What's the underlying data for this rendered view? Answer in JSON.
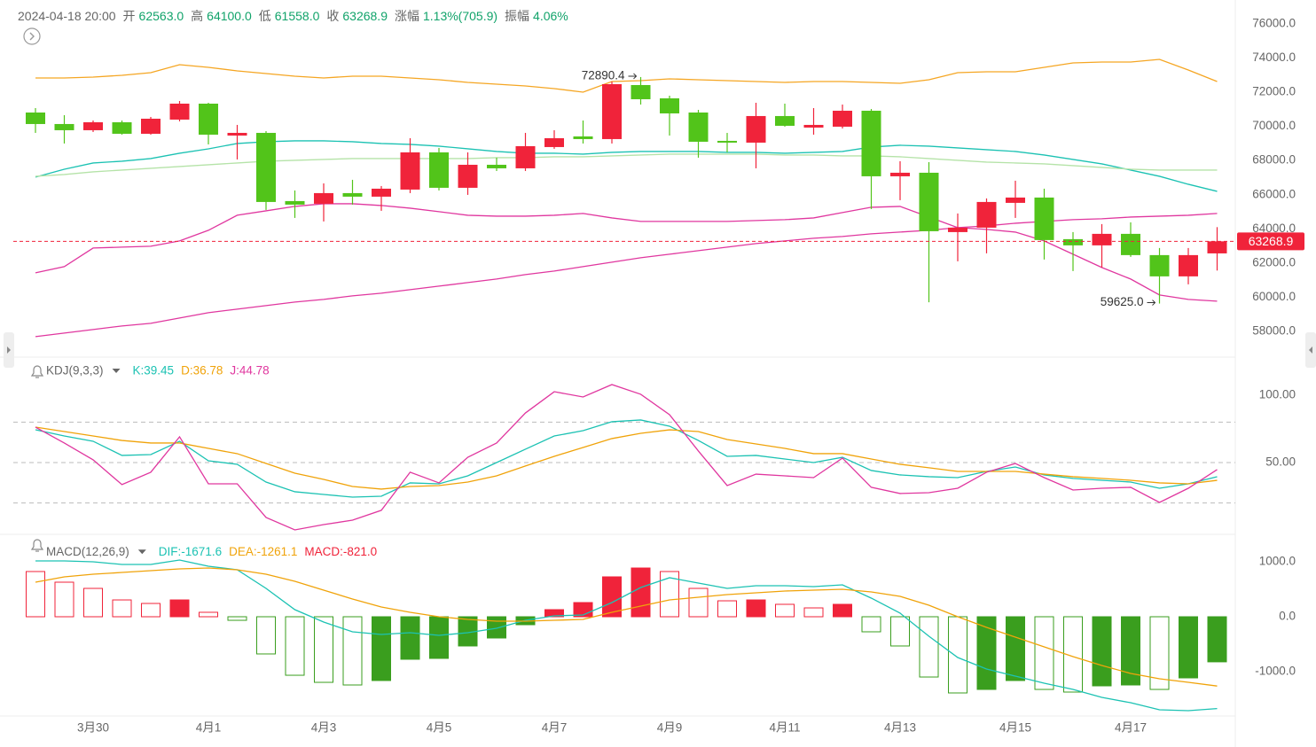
{
  "header": {
    "datetime": "2024-04-18 20:00",
    "items": [
      {
        "label": "开",
        "value": "62563.0"
      },
      {
        "label": "高",
        "value": "64100.0"
      },
      {
        "label": "低",
        "value": "61558.0"
      },
      {
        "label": "收",
        "value": "63268.9"
      },
      {
        "label": "涨幅",
        "value": "1.13%(705.9)"
      },
      {
        "label": "振幅",
        "value": "4.06%"
      }
    ]
  },
  "chart_data": [
    {
      "type": "candlestick",
      "up_color": "#f0233a",
      "down_color": "#52c41a",
      "open": [
        70813,
        70139,
        69776,
        70243,
        69568,
        70398,
        71332,
        69464,
        69620,
        65626,
        65470,
        66093,
        65885,
        66300,
        68479,
        66404,
        67752,
        67545,
        68790,
        69413,
        69257,
        72421,
        71643,
        70813,
        69153,
        69049,
        70606,
        69931,
        69983,
        70917,
        67078,
        67286,
        63810,
        64070,
        65522,
        65833,
        63396,
        63033,
        63707,
        62462,
        61217,
        62563
      ],
      "high": [
        71072,
        70657,
        70346,
        70346,
        70554,
        71487,
        71384,
        70087,
        69724,
        66248,
        66663,
        66871,
        66508,
        69309,
        68738,
        68479,
        68168,
        69620,
        69776,
        70346,
        72628,
        72890.4,
        71798,
        70968,
        69620,
        71384,
        71332,
        71072,
        71280,
        71020,
        67960,
        67908,
        64900,
        65781,
        66819,
        66352,
        63810,
        64278,
        64381,
        62877,
        62877,
        64100
      ],
      "low": [
        69620,
        68997,
        69672,
        69516,
        69516,
        70294,
        68945,
        68064,
        65107,
        64640,
        64433,
        65419,
        65055,
        66093,
        66248,
        65989,
        67389,
        67389,
        68686,
        68997,
        68997,
        71280,
        69464,
        68168,
        68479,
        67545,
        69983,
        69516,
        69879,
        65159,
        65678,
        59700,
        62099,
        62566,
        64640,
        62203,
        61528,
        61736,
        62358,
        59625,
        60750,
        61558
      ],
      "close": [
        70139,
        69776,
        70243,
        69568,
        70450,
        71332,
        69516,
        69620,
        65574,
        65419,
        66093,
        65885,
        66352,
        68479,
        66404,
        67752,
        67545,
        68842,
        69309,
        69257,
        72473,
        71591,
        70761,
        69101,
        69049,
        70606,
        70035,
        70087,
        70917,
        67078,
        67286,
        63862,
        64070,
        65574,
        65833,
        63344,
        63033,
        63707,
        62462,
        61217,
        62462,
        63268.9
      ],
      "lines": [
        {
          "color": "#f5a623",
          "values": [
            72836,
            72836,
            72888,
            72992,
            73147,
            73614,
            73458,
            73251,
            73095,
            72940,
            72836,
            72940,
            72940,
            72836,
            72732,
            72577,
            72473,
            72370,
            72214,
            72006,
            72628,
            72680,
            72784,
            72732,
            72680,
            72628,
            72577,
            72628,
            72628,
            72577,
            72525,
            72732,
            73147,
            73199,
            73199,
            73458,
            73718,
            73770,
            73770,
            73925,
            73303,
            72628
          ]
        },
        {
          "color": "#1cc2b3",
          "values": [
            67027,
            67493,
            67857,
            67960,
            68116,
            68427,
            68686,
            68998,
            69101,
            69153,
            69153,
            69101,
            68998,
            68946,
            68842,
            68686,
            68531,
            68427,
            68427,
            68375,
            68479,
            68531,
            68531,
            68531,
            68479,
            68479,
            68427,
            68479,
            68531,
            68790,
            68894,
            68842,
            68738,
            68634,
            68531,
            68323,
            68064,
            67805,
            67442,
            67078,
            66611,
            66196
          ]
        },
        {
          "color": "#b5e3a8",
          "values": [
            67078,
            67182,
            67337,
            67442,
            67545,
            67649,
            67752,
            67857,
            67960,
            68012,
            68064,
            68116,
            68116,
            68116,
            68116,
            68116,
            68168,
            68168,
            68220,
            68220,
            68272,
            68323,
            68375,
            68375,
            68375,
            68375,
            68323,
            68323,
            68272,
            68272,
            68220,
            68116,
            68012,
            67908,
            67857,
            67805,
            67701,
            67597,
            67494,
            67442,
            67442,
            67442
          ]
        },
        {
          "color": "#e0379f",
          "values": [
            61425,
            61788,
            62877,
            62929,
            62981,
            63292,
            63914,
            64796,
            65055,
            65315,
            65470,
            65470,
            65367,
            65211,
            65004,
            64796,
            64744,
            64744,
            64796,
            64900,
            64640,
            64433,
            64433,
            64433,
            64433,
            64485,
            64537,
            64640,
            64952,
            65263,
            65315,
            64692,
            64070,
            63966,
            63810,
            63292,
            62514,
            61736,
            61062,
            60129,
            59870,
            59766
          ]
        },
        {
          "color": "#e0379f",
          "values": [
            57690,
            57897,
            58105,
            58312,
            58468,
            58779,
            59090,
            59298,
            59505,
            59713,
            59868,
            60076,
            60232,
            60439,
            60646,
            60854,
            61061,
            61321,
            61528,
            61788,
            62047,
            62306,
            62514,
            62721,
            62929,
            63136,
            63292,
            63447,
            63551,
            63707,
            63811,
            63914,
            64070,
            64174,
            64329,
            64433,
            64537,
            64589,
            64692,
            64744,
            64796,
            64900
          ]
        }
      ],
      "ylim": [
        56800,
        76800
      ],
      "yticks": [
        {
          "value": 58000,
          "label": "58000.0"
        },
        {
          "value": 60000,
          "label": "60000.0"
        },
        {
          "value": 62000,
          "label": "62000.0"
        },
        {
          "value": 64000,
          "label": "64000.0"
        },
        {
          "value": 66000,
          "label": "66000.0"
        },
        {
          "value": 68000,
          "label": "68000.0"
        },
        {
          "value": 70000,
          "label": "70000.0"
        },
        {
          "value": 72000,
          "label": "72000.0"
        },
        {
          "value": 74000,
          "label": "74000.0"
        },
        {
          "value": 76000,
          "label": "76000.0"
        }
      ],
      "last_price": 63268.9,
      "last_price_color": "#f0233a",
      "high_marker": 72890.4,
      "low_marker": {
        "value": 59625,
        "label": "59625.0"
      }
    },
    {
      "type": "line",
      "title": "KDJ(9,3,3)",
      "series": [
        {
          "name": "K:39.45",
          "color": "#1cc2b3",
          "values": [
            74.3,
            69.7,
            65.8,
            55.3,
            55.9,
            65.8,
            51.3,
            48.7,
            35.5,
            28.3,
            26.3,
            24.3,
            25.0,
            34.9,
            34.2,
            40.1,
            50.0,
            59.9,
            69.7,
            73.7,
            80.3,
            81.6,
            77.0,
            66.4,
            54.6,
            55.3,
            52.6,
            50.0,
            53.9,
            44.1,
            40.8,
            39.5,
            38.8,
            43.4,
            46.7,
            40.8,
            38.2,
            36.8,
            35.5,
            30.9,
            34.2,
            39.45
          ]
        },
        {
          "name": "D:36.78",
          "color": "#f0a30a",
          "values": [
            76.3,
            73.0,
            69.7,
            66.4,
            64.5,
            64.5,
            60.5,
            56.6,
            49.3,
            42.1,
            37.5,
            32.2,
            30.3,
            32.2,
            32.9,
            35.5,
            40.1,
            47.4,
            54.6,
            61.2,
            67.8,
            71.7,
            74.3,
            73.0,
            67.1,
            63.8,
            60.5,
            56.6,
            56.6,
            52.6,
            48.7,
            46.1,
            43.4,
            43.4,
            43.4,
            41.4,
            39.5,
            38.2,
            36.8,
            34.9,
            34.2,
            36.78
          ]
        },
        {
          "name": "J:44.78",
          "color": "#e0379f",
          "values": [
            76.3,
            64.5,
            52.0,
            33.6,
            42.8,
            69.1,
            34.2,
            34.2,
            9.2,
            0.0,
            3.9,
            7.2,
            14.5,
            42.8,
            34.9,
            53.9,
            64.5,
            86.8,
            102.6,
            98.7,
            107.9,
            100.7,
            85.5,
            58.6,
            32.9,
            41.4,
            40.1,
            38.8,
            53.3,
            31.6,
            27.0,
            27.6,
            30.9,
            42.8,
            49.3,
            38.8,
            29.6,
            30.9,
            31.6,
            20.4,
            30.9,
            44.78
          ]
        }
      ],
      "ylim": [
        -2,
        125
      ],
      "yticks": [
        {
          "value": 100,
          "label": "100.00"
        },
        {
          "value": 50,
          "label": "50.00"
        }
      ],
      "levels": [
        20,
        50,
        80
      ]
    },
    {
      "type": "macd",
      "title": "MACD(12,26,9)",
      "series": [
        {
          "name": "DIF:-1671.6",
          "color": "#1cc2b3",
          "values": [
            1016,
            1016,
            1000,
            952,
            952,
            1032,
            919,
            855,
            516,
            129,
            -97,
            -274,
            -323,
            -290,
            -339,
            -290,
            -210,
            -65,
            16,
            32,
            258,
            532,
            710,
            613,
            516,
            565,
            565,
            548,
            581,
            339,
            65,
            -355,
            -742,
            -952,
            -1081,
            -1210,
            -1323,
            -1468,
            -1565,
            -1694,
            -1710,
            -1671.6
          ]
        },
        {
          "name": "DEA:-1261.1",
          "color": "#f0a30a",
          "values": [
            629,
            726,
            774,
            806,
            839,
            871,
            887,
            855,
            774,
            645,
            484,
            323,
            177,
            81,
            0,
            -48,
            -81,
            -81,
            -65,
            -48,
            81,
            194,
            306,
            355,
            403,
            435,
            468,
            484,
            500,
            452,
            371,
            210,
            0,
            -194,
            -371,
            -548,
            -726,
            -887,
            -1032,
            -1129,
            -1194,
            -1261.1
          ]
        }
      ],
      "histogram": {
        "name": "MACD:-821.0",
        "up_color": "#f0233a",
        "down_color": "#3a9e1e",
        "values": [
          823,
          629,
          516,
          306,
          242,
          306,
          81,
          -65,
          -677,
          -1065,
          -1194,
          -1242,
          -1161,
          -774,
          -758,
          -532,
          -387,
          -145,
          129,
          258,
          726,
          887,
          823,
          516,
          290,
          306,
          226,
          161,
          226,
          -274,
          -532,
          -1097,
          -1387,
          -1323,
          -1161,
          -1323,
          -1371,
          -1258,
          -1242,
          -1323,
          -1113,
          -821.0
        ],
        "filled": [
          false,
          false,
          false,
          false,
          false,
          true,
          false,
          false,
          false,
          false,
          false,
          false,
          true,
          true,
          true,
          true,
          true,
          true,
          true,
          true,
          true,
          true,
          false,
          false,
          false,
          true,
          false,
          false,
          true,
          false,
          false,
          false,
          false,
          true,
          true,
          false,
          false,
          true,
          true,
          false,
          true,
          true
        ]
      },
      "categories": [
        null,
        null,
        "3月30",
        null,
        null,
        null,
        "4月1",
        null,
        null,
        null,
        "4月3",
        null,
        null,
        null,
        "4月5",
        null,
        null,
        null,
        "4月7",
        null,
        null,
        null,
        "4月9",
        null,
        null,
        null,
        "4月11",
        null,
        null,
        null,
        "4月13",
        null,
        null,
        null,
        "4月15",
        null,
        null,
        null,
        "4月17",
        null,
        null,
        null
      ],
      "ylim": [
        -1850,
        1350
      ],
      "yticks": [
        {
          "value": 1000,
          "label": "1000.0"
        },
        {
          "value": 0,
          "label": "0.0"
        },
        {
          "value": -1000,
          "label": "-1000.0"
        }
      ]
    }
  ]
}
